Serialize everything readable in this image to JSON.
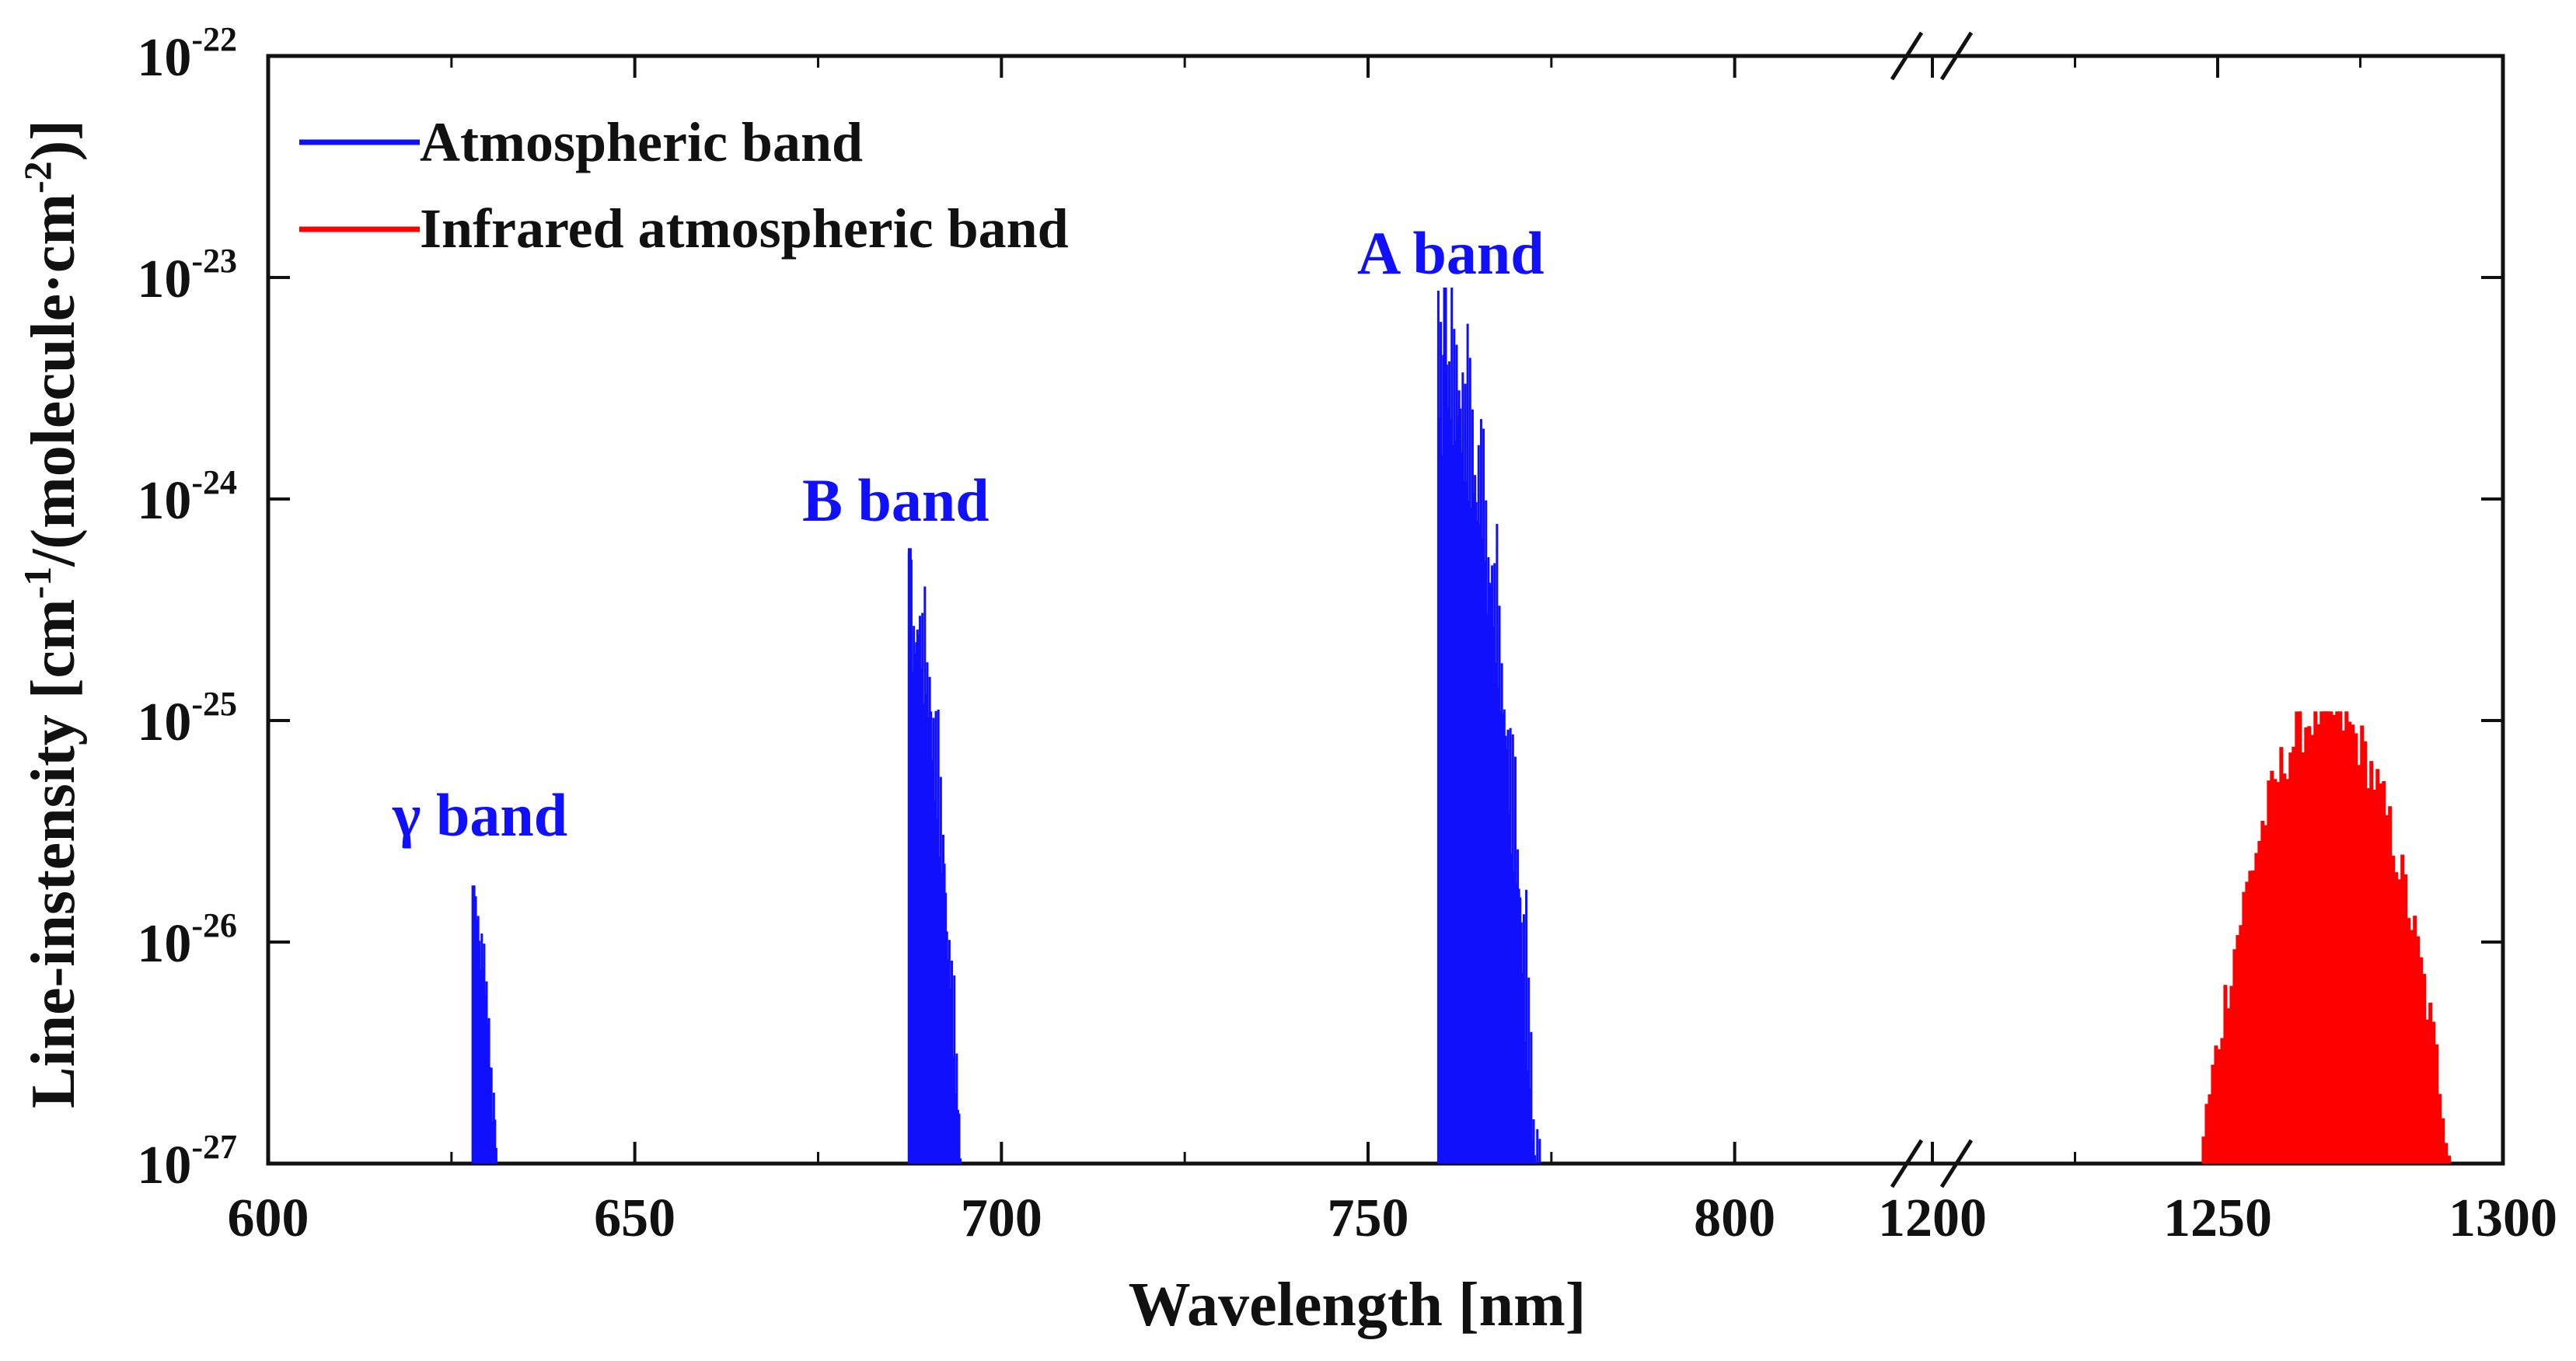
{
  "chart_data": {
    "type": "line",
    "title": "",
    "xlabel": "Wavelength [nm]",
    "ylabel": {
      "prefix": "Line-instensity [cm",
      "sup1": "-1",
      "mid": "/(molecule·cm",
      "sup2": "-2",
      "suffix": ")]"
    },
    "yscale": "log",
    "ylim_exp": [
      -27,
      -22
    ],
    "y_ticks": [
      {
        "base": "10",
        "exp": "-22",
        "value": 1e-22
      },
      {
        "base": "10",
        "exp": "-23",
        "value": 1e-23
      },
      {
        "base": "10",
        "exp": "-24",
        "value": 1e-24
      },
      {
        "base": "10",
        "exp": "-25",
        "value": 1e-25
      },
      {
        "base": "10",
        "exp": "-26",
        "value": 1e-26
      },
      {
        "base": "10",
        "exp": "-27",
        "value": 1e-27
      }
    ],
    "x_axis_break": {
      "left_range": [
        600,
        810
      ],
      "right_range": [
        1200,
        1300
      ],
      "break_near": [
        810,
        1200
      ]
    },
    "x_ticks_left": [
      600,
      650,
      700,
      750,
      800
    ],
    "x_ticks_right": [
      1200,
      1250,
      1300
    ],
    "legend": [
      {
        "label": "Atmospheric band",
        "color": "#1010ff"
      },
      {
        "label": "Infrared atmospheric band",
        "color": "#ff0000"
      }
    ],
    "legend_position": "top-left",
    "annotations": [
      {
        "text": "γ  band",
        "x": 628,
        "y_exp": -25.6,
        "color": "#1010ff"
      },
      {
        "text": "B band",
        "x": 689,
        "y_exp": -24.1,
        "color": "#1010ff"
      },
      {
        "text": "A band",
        "x": 763,
        "y_exp": -23.0,
        "color": "#1010ff"
      }
    ],
    "series": [
      {
        "name": "Atmospheric band",
        "color": "#1010ff",
        "peaks": [
          {
            "label": "γ band",
            "x_start": 627.9,
            "x_end": 632.5,
            "max_intensity": 1.8e-26,
            "head_x": 628.0
          },
          {
            "label": "B band",
            "x_start": 687.3,
            "x_end": 696.5,
            "max_intensity": 6e-25,
            "head_x": 687.5
          },
          {
            "label": "A band",
            "x_start": 759.5,
            "x_end": 775.5,
            "max_intensity": 9e-24,
            "head_x": 760.5
          }
        ]
      },
      {
        "name": "Infrared atmospheric band",
        "color": "#ff0000",
        "peaks": [
          {
            "label": "Infrared atmospheric band",
            "x_start": 1244,
            "x_end": 1293,
            "max_intensity": 1.1e-25,
            "head_x": 1269
          }
        ]
      }
    ]
  }
}
